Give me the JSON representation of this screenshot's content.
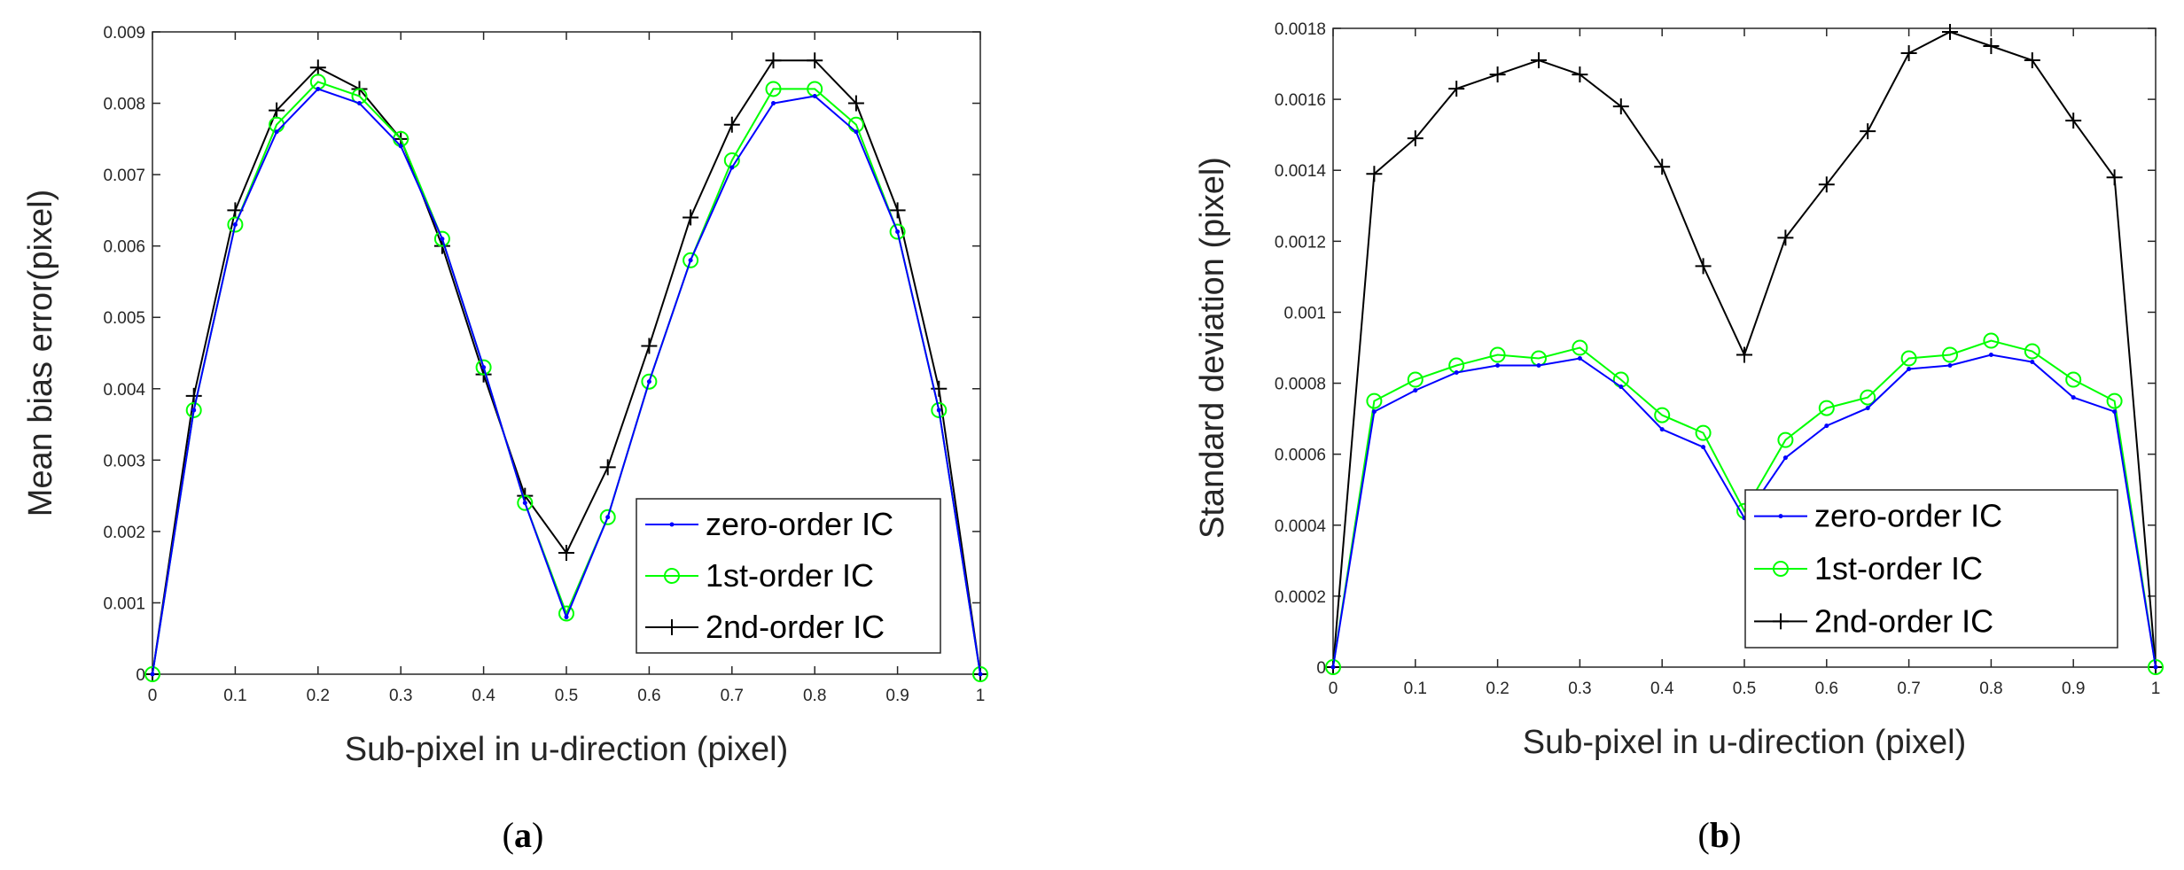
{
  "colors": {
    "zero_order": "#0000ff",
    "first_order": "#00ff00",
    "second_order": "#000000",
    "axis": "#262626"
  },
  "chart_data": [
    {
      "type": "line",
      "caption_letter": "a",
      "xlabel": "Sub-pixel in u-direction (pixel)",
      "ylabel": "Mean bias error(pixel)",
      "xlim": [
        0,
        1
      ],
      "ylim": [
        0,
        0.009
      ],
      "xticks": [
        "0",
        "0.1",
        "0.2",
        "0.3",
        "0.4",
        "0.5",
        "0.6",
        "0.7",
        "0.8",
        "0.9",
        "1"
      ],
      "yticks": [
        "0",
        "0.001",
        "0.002",
        "0.003",
        "0.004",
        "0.005",
        "0.006",
        "0.007",
        "0.008",
        "0.009"
      ],
      "legend_position": "bottom-right",
      "x": [
        0,
        0.05,
        0.1,
        0.15,
        0.2,
        0.25,
        0.3,
        0.35,
        0.4,
        0.45,
        0.5,
        0.55,
        0.6,
        0.65,
        0.7,
        0.75,
        0.8,
        0.85,
        0.9,
        0.95,
        1
      ],
      "series": [
        {
          "name": "zero-order IC",
          "marker": "dot",
          "values": [
            0,
            0.0037,
            0.0063,
            0.0076,
            0.0082,
            0.008,
            0.0074,
            0.0061,
            0.0043,
            0.0024,
            0.0008,
            0.0022,
            0.0041,
            0.0058,
            0.0071,
            0.008,
            0.0081,
            0.0076,
            0.0062,
            0.0037,
            0
          ]
        },
        {
          "name": "1st-order IC",
          "marker": "circle",
          "values": [
            0,
            0.0037,
            0.0063,
            0.0077,
            0.0083,
            0.0081,
            0.0075,
            0.0061,
            0.0043,
            0.0024,
            0.00085,
            0.0022,
            0.0041,
            0.0058,
            0.0072,
            0.0082,
            0.0082,
            0.0077,
            0.0062,
            0.0037,
            0
          ]
        },
        {
          "name": "2nd-order IC",
          "marker": "plus",
          "values": [
            0,
            0.0039,
            0.0065,
            0.0079,
            0.0085,
            0.0082,
            0.0075,
            0.006,
            0.0042,
            0.0025,
            0.0017,
            0.0029,
            0.0046,
            0.0064,
            0.0077,
            0.0086,
            0.0086,
            0.008,
            0.0065,
            0.004,
            0
          ]
        }
      ]
    },
    {
      "type": "line",
      "caption_letter": "b",
      "xlabel": "Sub-pixel in u-direction (pixel)",
      "ylabel": "Standard deviation (pixel)",
      "xlim": [
        0,
        1
      ],
      "ylim": [
        0,
        0.0018
      ],
      "xticks": [
        "0",
        "0.1",
        "0.2",
        "0.3",
        "0.4",
        "0.5",
        "0.6",
        "0.7",
        "0.8",
        "0.9",
        "1"
      ],
      "yticks": [
        "0",
        "0.0002",
        "0.0004",
        "0.0006",
        "0.0008",
        "0.001",
        "0.0012",
        "0.0014",
        "0.0016",
        "0.0018"
      ],
      "legend_position": "bottom-right",
      "x": [
        0,
        0.05,
        0.1,
        0.15,
        0.2,
        0.25,
        0.3,
        0.35,
        0.4,
        0.45,
        0.5,
        0.55,
        0.6,
        0.65,
        0.7,
        0.75,
        0.8,
        0.85,
        0.9,
        0.95,
        1
      ],
      "series": [
        {
          "name": "zero-order IC",
          "marker": "dot",
          "values": [
            0,
            0.00072,
            0.00078,
            0.00083,
            0.00085,
            0.00085,
            0.00087,
            0.00079,
            0.00067,
            0.00062,
            0.00042,
            0.00059,
            0.00068,
            0.00073,
            0.00084,
            0.00085,
            0.00088,
            0.00086,
            0.00076,
            0.00072,
            0
          ]
        },
        {
          "name": "1st-order IC",
          "marker": "circle",
          "values": [
            0,
            0.00075,
            0.00081,
            0.00085,
            0.00088,
            0.00087,
            0.0009,
            0.00081,
            0.00071,
            0.00066,
            0.00044,
            0.00064,
            0.00073,
            0.00076,
            0.00087,
            0.00088,
            0.00092,
            0.00089,
            0.00081,
            0.00075,
            0
          ]
        },
        {
          "name": "2nd-order IC",
          "marker": "plus",
          "values": [
            0,
            0.00139,
            0.00149,
            0.00163,
            0.00167,
            0.00171,
            0.00167,
            0.00158,
            0.00141,
            0.00113,
            0.00088,
            0.00121,
            0.00136,
            0.00151,
            0.00173,
            0.00179,
            0.00175,
            0.00171,
            0.00154,
            0.00138,
            0
          ]
        }
      ]
    }
  ]
}
